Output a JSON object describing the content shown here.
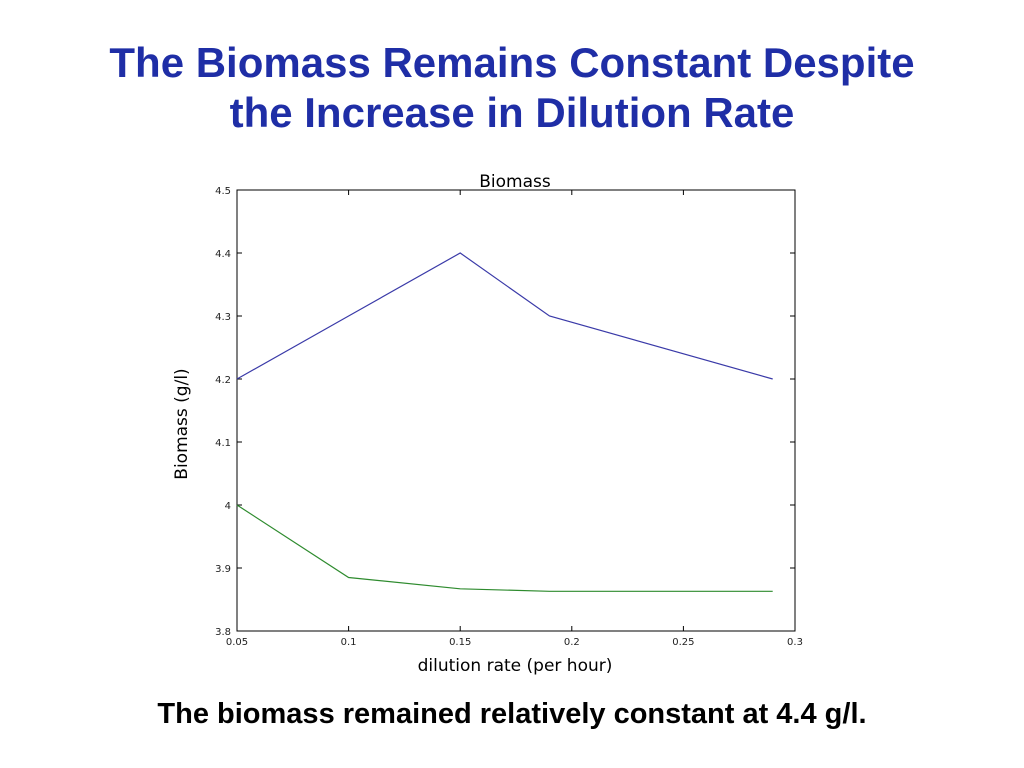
{
  "slide": {
    "title_line1": "The Biomass Remains Constant Despite",
    "title_line2": "the Increase in Dilution Rate",
    "footer": "The biomass remained relatively constant at 4.4 g/l."
  },
  "chart_data": {
    "type": "line",
    "title": "Biomass",
    "xlabel": "dilution rate (per hour)",
    "ylabel": "Biomass (g/l)",
    "xlim": [
      0.05,
      0.3
    ],
    "ylim": [
      3.8,
      4.5
    ],
    "xticks": [
      0.05,
      0.1,
      0.15,
      0.2,
      0.25,
      0.3
    ],
    "xtick_labels": [
      "0.05",
      "0.1",
      "0.15",
      "0.2",
      "0.25",
      "0.3"
    ],
    "yticks": [
      3.8,
      3.9,
      4.0,
      4.1,
      4.2,
      4.3,
      4.4,
      4.5
    ],
    "ytick_labels": [
      "3.8",
      "3.9",
      "4",
      "4.1",
      "4.2",
      "4.3",
      "4.4",
      "4.5"
    ],
    "grid": false,
    "series": [
      {
        "color": "#3a3aa8",
        "x": [
          0.05,
          0.1,
          0.15,
          0.19,
          0.29
        ],
        "y": [
          4.2,
          4.3,
          4.4,
          4.3,
          4.2
        ]
      },
      {
        "color": "#2e8b2e",
        "x": [
          0.05,
          0.1,
          0.15,
          0.19,
          0.29
        ],
        "y": [
          4.0,
          3.885,
          3.867,
          3.863,
          3.863
        ]
      }
    ]
  }
}
